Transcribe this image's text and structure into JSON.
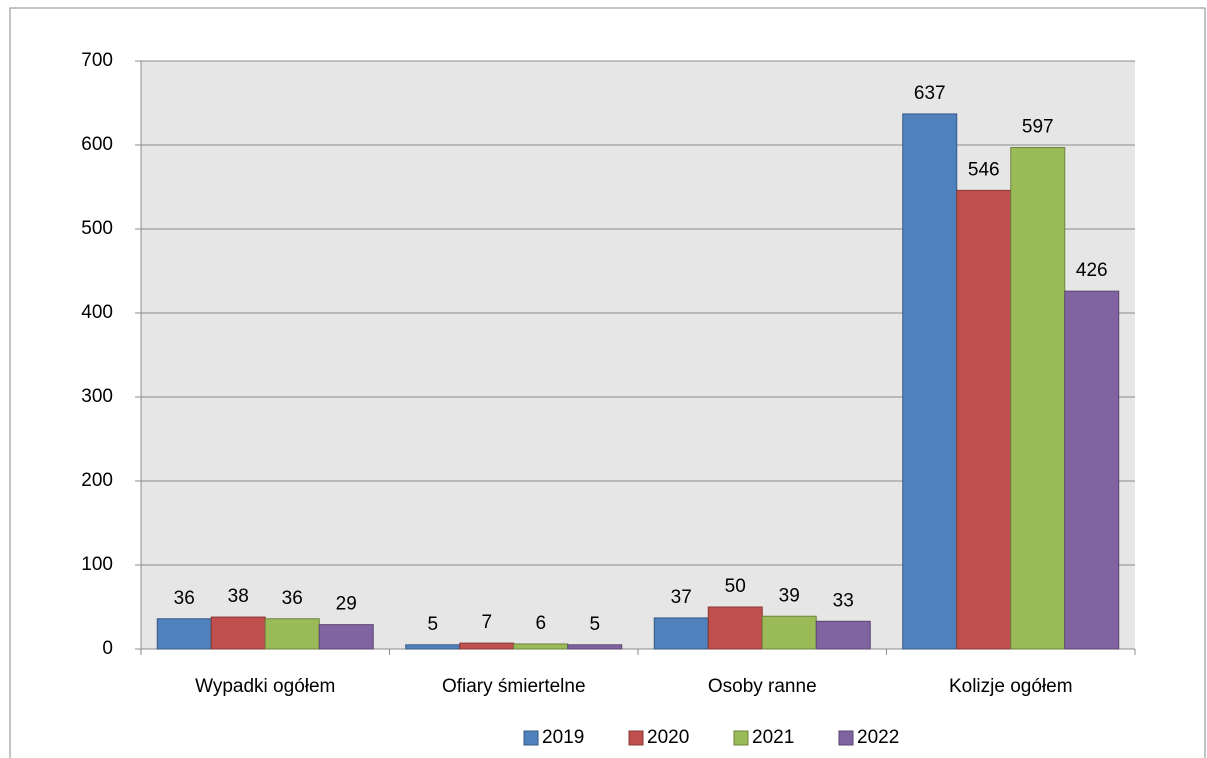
{
  "chart_data": {
    "type": "bar",
    "categories": [
      "Wypadki ogółem",
      "Ofiary śmiertelne",
      "Osoby ranne",
      "Kolizje ogółem"
    ],
    "series": [
      {
        "name": "2019",
        "color": "#4f81bd",
        "values": [
          36,
          5,
          37,
          637
        ]
      },
      {
        "name": "2020",
        "color": "#c0504d",
        "values": [
          38,
          7,
          50,
          546
        ]
      },
      {
        "name": "2021",
        "color": "#9bbb59",
        "values": [
          36,
          6,
          39,
          597
        ]
      },
      {
        "name": "2022",
        "color": "#8064a2",
        "values": [
          29,
          5,
          33,
          426
        ]
      }
    ],
    "ylim": [
      0,
      700
    ],
    "yticks": [
      0,
      100,
      200,
      300,
      400,
      500,
      600,
      700
    ],
    "grid": true,
    "legend": "bottom"
  }
}
